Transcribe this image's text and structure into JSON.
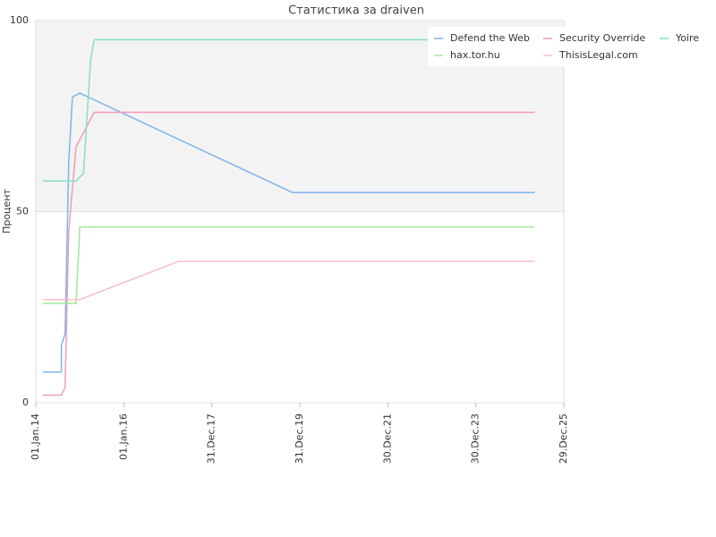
{
  "chart_data": {
    "type": "line",
    "title": "Статистика за draiven",
    "ylabel": "Процент",
    "xlim": [
      "2014-01-01",
      "2025-12-29"
    ],
    "xticks": [
      {
        "value": "2014-01-01",
        "label": "01.Jan.14"
      },
      {
        "value": "2016-01-01",
        "label": "01.Jan.16"
      },
      {
        "value": "2017-12-31",
        "label": "31.Dec.17"
      },
      {
        "value": "2019-12-31",
        "label": "31.Dec.19"
      },
      {
        "value": "2021-12-30",
        "label": "30.Dec.21"
      },
      {
        "value": "2023-12-30",
        "label": "30.Dec.23"
      },
      {
        "value": "2025-12-29",
        "label": "29.Dec.25"
      }
    ],
    "ylim": [
      0,
      100
    ],
    "yticks": [
      0,
      50,
      100
    ],
    "grid": true,
    "legend": "top-right",
    "series": [
      {
        "name": "Defend the Web",
        "color": "#7cb5ec",
        "x": [
          "2014-03",
          "2014-08",
          "2014-08",
          "2014-09",
          "2014-10",
          "2014-11",
          "2015-01",
          "2019-11",
          "2025-05"
        ],
        "values": [
          8,
          8,
          15,
          18,
          63,
          80,
          81,
          55,
          55
        ]
      },
      {
        "name": "Security Override",
        "color": "#f09cbb",
        "x": [
          "2014-03",
          "2014-08",
          "2014-09",
          "2014-10",
          "2014-12",
          "2015-05",
          "2015-08",
          "2025-05"
        ],
        "values": [
          2,
          2,
          4,
          45,
          67,
          76,
          76,
          76
        ]
      },
      {
        "name": "Yoire",
        "color": "#88e0b8",
        "x": [
          "2014-03",
          "2014-12",
          "2015-02",
          "2015-04",
          "2015-05",
          "2025-05"
        ],
        "values": [
          58,
          58,
          60,
          90,
          95,
          95
        ]
      },
      {
        "name": "hax.tor.hu",
        "color": "#a0e89a",
        "x": [
          "2014-03",
          "2014-12",
          "2015-01",
          "2025-05"
        ],
        "values": [
          26,
          26,
          46,
          46
        ]
      },
      {
        "name": "ThisisLegal.com",
        "color": "#f5c0c8",
        "x": [
          "2014-03",
          "2015-01",
          "2017-04",
          "2025-05"
        ],
        "values": [
          27,
          27,
          37,
          37
        ]
      }
    ]
  }
}
